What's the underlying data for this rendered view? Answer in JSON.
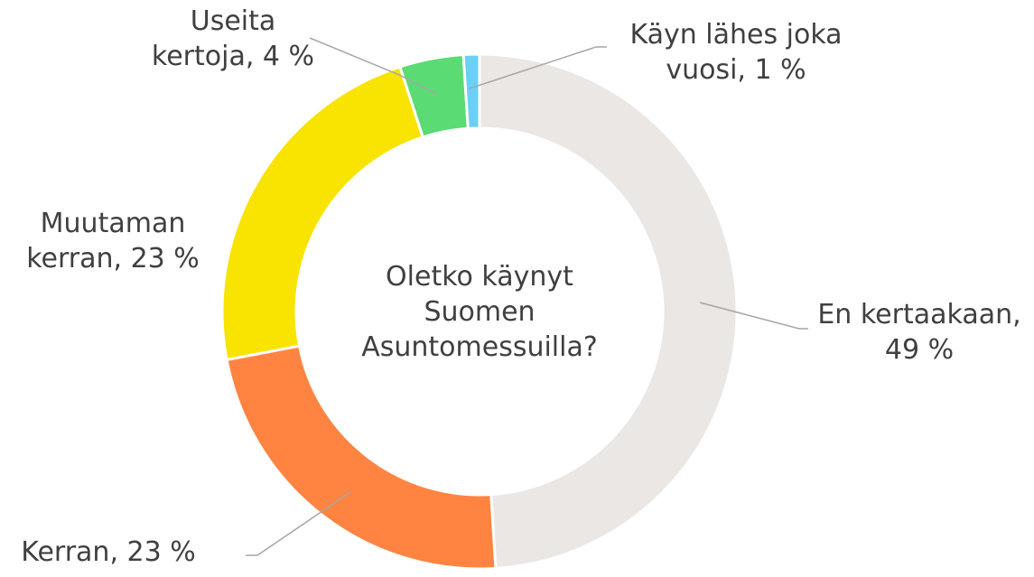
{
  "chart_data": {
    "type": "donut",
    "title": [
      "Oletko käynyt",
      "Suomen",
      "Asuntomessuilla?"
    ],
    "labels": [
      [
        "En kertaakaan,",
        "49 %"
      ],
      [
        "Kerran, 23 %"
      ],
      [
        "Muutaman",
        "kerran, 23 %"
      ],
      [
        "Useita",
        "kertoja, 4 %"
      ],
      [
        "Käyn lähes joka",
        "vuosi, 1 %"
      ]
    ],
    "values": [
      49,
      23,
      23,
      4,
      1
    ],
    "colors": [
      "#ebe7e5",
      "#ff8442",
      "#f8e400",
      "#5adb74",
      "#6ccff6"
    ]
  }
}
